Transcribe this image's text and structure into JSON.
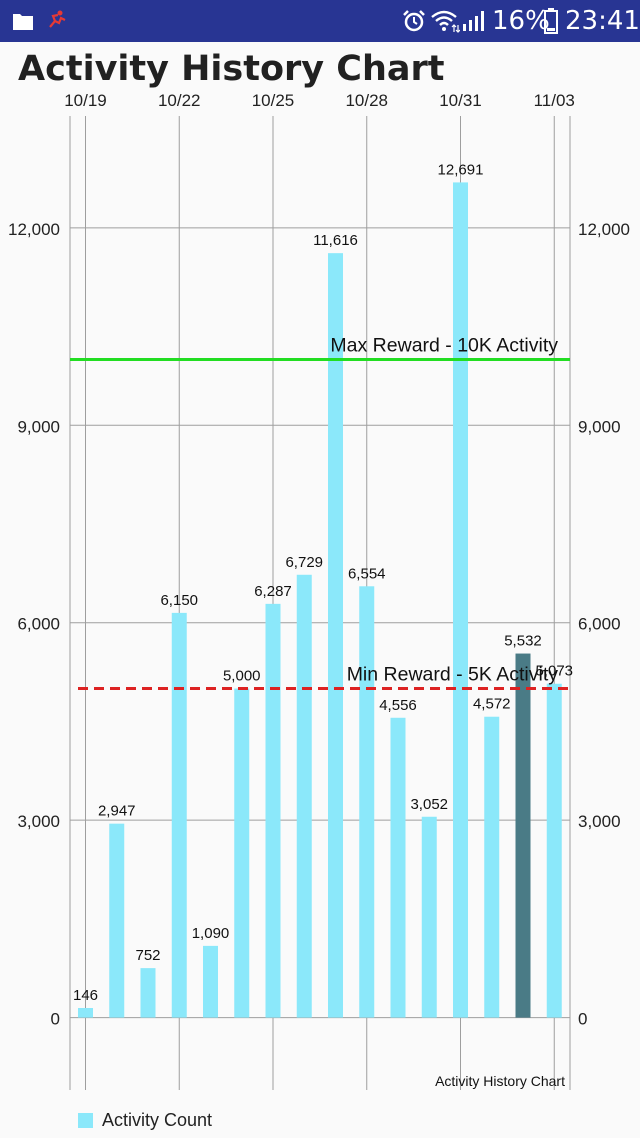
{
  "status_bar": {
    "battery_percent": "16%",
    "time": "23:41",
    "background": "#283593",
    "icons": [
      "folder-icon",
      "app-notification-icon",
      "alarm-icon",
      "wifi-icon",
      "signal-icon",
      "battery-icon"
    ]
  },
  "chart_data": {
    "type": "bar",
    "title": "Activity History Chart",
    "description_label": "Activity History Chart",
    "x_tick_labels": [
      "10/19",
      "10/22",
      "10/25",
      "10/28",
      "10/31",
      "11/03"
    ],
    "x_tick_dates": [
      "2017-10-19",
      "2017-10-22",
      "2017-10-25",
      "2017-10-28",
      "2017-10-31",
      "2017-11-03"
    ],
    "dates": [
      "2017-10-19",
      "2017-10-20",
      "2017-10-21",
      "2017-10-22",
      "2017-10-23",
      "2017-10-24",
      "2017-10-25",
      "2017-10-26",
      "2017-10-27",
      "2017-10-28",
      "2017-10-29",
      "2017-10-30",
      "2017-10-31",
      "2017-11-01",
      "2017-11-02",
      "2017-11-03"
    ],
    "values": [
      146,
      2947,
      752,
      6150,
      1090,
      5000,
      6287,
      6729,
      11616,
      6554,
      4556,
      3052,
      12691,
      4572,
      5532,
      5073
    ],
    "value_labels": [
      "146",
      "2,947",
      "752",
      "6,150",
      "1,090",
      "5,000",
      "6,287",
      "6,729",
      "11,616",
      "6,554",
      "4,556",
      "3,052",
      "12,691",
      "4,572",
      "5,532",
      "5,073"
    ],
    "highlight_index": 14,
    "y_ticks": [
      0,
      3000,
      6000,
      9000,
      12000
    ],
    "y_tick_labels": [
      "0",
      "3,000",
      "6,000",
      "9,000",
      "12,000"
    ],
    "ylim": [
      -1100,
      13700
    ],
    "grid": true,
    "bar_color": "#8BE8FA",
    "highlight_color": "#4A7B86",
    "limit_lines": [
      {
        "value": 10000,
        "label": "Max Reward - 10K Activity",
        "color": "#22DD22",
        "style": "solid"
      },
      {
        "value": 5000,
        "label": "Min Reward - 5K Activity",
        "color": "#DD2222",
        "style": "dashed"
      }
    ],
    "legend": {
      "position": "bottom-left",
      "entries": [
        {
          "label": "Activity Count",
          "color": "#8BE8FA"
        }
      ]
    }
  }
}
